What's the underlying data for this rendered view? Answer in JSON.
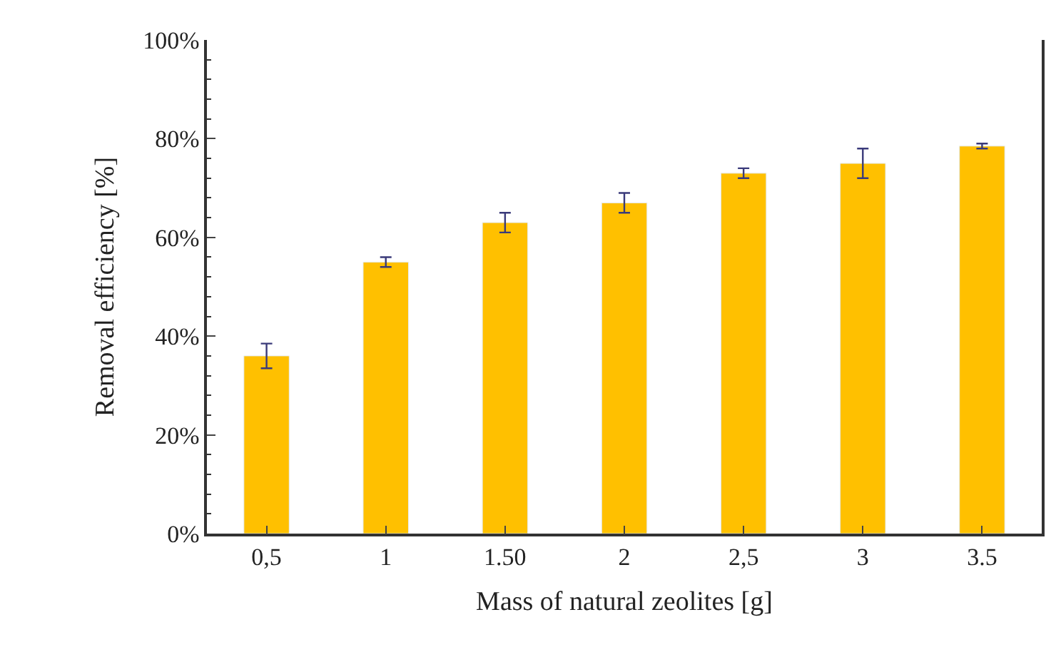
{
  "chart_data": {
    "type": "bar",
    "xlabel": "Mass of natural zeolites [g]",
    "ylabel": "Removal efficiency [%]",
    "categories": [
      "0,5",
      "1",
      "1.50",
      "2",
      "2,5",
      "3",
      "3.5"
    ],
    "values": [
      36,
      55,
      63,
      67,
      73,
      75,
      78.5
    ],
    "errors": [
      2.5,
      1,
      2,
      2,
      1,
      3,
      0.5
    ],
    "color": "#ffc000",
    "ylim": [
      0,
      100
    ],
    "yticks": [
      {
        "value": 0,
        "label": "0%"
      },
      {
        "value": 20,
        "label": "20%"
      },
      {
        "value": 40,
        "label": "40%"
      },
      {
        "value": 60,
        "label": "60%"
      },
      {
        "value": 80,
        "label": "80%"
      },
      {
        "value": 100,
        "label": "100%"
      }
    ]
  }
}
